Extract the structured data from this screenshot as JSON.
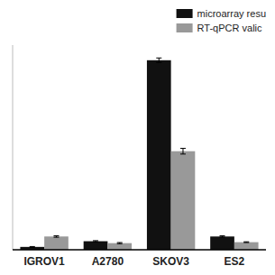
{
  "chart_data": {
    "type": "bar",
    "categories": [
      "IGROV1",
      "A2780",
      "SKOV3",
      "ES2"
    ],
    "series": [
      {
        "name": "microarray resu",
        "color": "#111111",
        "values": [
          1.5,
          4.5,
          100.0,
          7.0
        ],
        "errors": [
          0.2,
          0.3,
          1.2,
          0.4
        ]
      },
      {
        "name": "RT-qPCR valic",
        "color": "#999999",
        "values": [
          7.0,
          3.5,
          52.0,
          4.0
        ],
        "errors": [
          0.4,
          0.3,
          1.5,
          0.2
        ]
      }
    ],
    "ylim": [
      0,
      108
    ],
    "yticks": [],
    "grid": false,
    "legend": "upper right",
    "tick_labels": "x"
  }
}
